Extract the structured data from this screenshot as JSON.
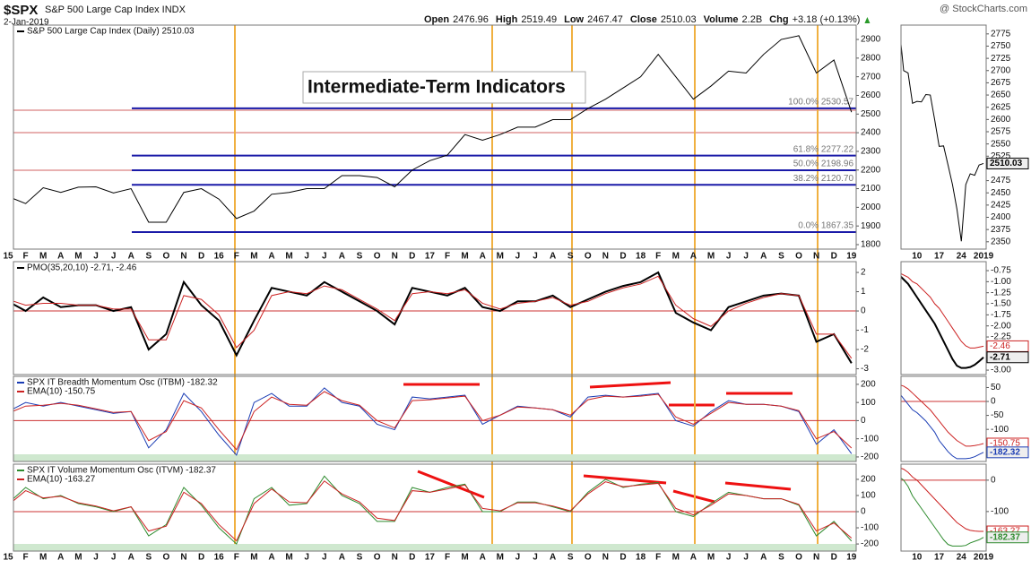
{
  "header": {
    "symbol": "$SPX",
    "name": "S&P 500 Large Cap Index INDX",
    "date": "2-Jan-2019",
    "source": "@ StockCharts.com",
    "quote": [
      {
        "label": "Open",
        "value": "2476.96"
      },
      {
        "label": "High",
        "value": "2519.49"
      },
      {
        "label": "Low",
        "value": "2467.47"
      },
      {
        "label": "Close",
        "value": "2510.03"
      },
      {
        "label": "Volume",
        "value": "2.2B"
      },
      {
        "label": "Chg",
        "value": "+3.18 (+0.13%)"
      }
    ]
  },
  "chart_data": [
    {
      "type": "line",
      "annotation": "Intermediate-Term Indicators",
      "categories": [
        "15",
        "F",
        "M",
        "A",
        "M",
        "J",
        "J",
        "A",
        "S",
        "O",
        "N",
        "D",
        "16",
        "F",
        "M",
        "A",
        "M",
        "J",
        "J",
        "A",
        "S",
        "O",
        "N",
        "D",
        "17",
        "F",
        "M",
        "A",
        "M",
        "J",
        "J",
        "A",
        "S",
        "O",
        "N",
        "D",
        "18",
        "F",
        "M",
        "A",
        "M",
        "J",
        "J",
        "A",
        "S",
        "O",
        "N",
        "D",
        "19"
      ],
      "series": [
        {
          "name": "S&P 500 Large Cap Index (Daily) 2510.03",
          "color": "#000000",
          "values": [
            2058,
            2020,
            2105,
            2080,
            2108,
            2110,
            2077,
            2100,
            1920,
            1920,
            2080,
            2100,
            2044,
            1940,
            1980,
            2070,
            2080,
            2100,
            2100,
            2170,
            2170,
            2160,
            2110,
            2200,
            2250,
            2280,
            2390,
            2360,
            2390,
            2430,
            2430,
            2470,
            2470,
            2530,
            2580,
            2640,
            2700,
            2820,
            2700,
            2580,
            2650,
            2730,
            2720,
            2820,
            2900,
            2920,
            2720,
            2790,
            2510.03
          ]
        }
      ],
      "fib_levels": [
        {
          "value": 2530.57,
          "label": "100.0% 2530.57"
        },
        {
          "value": 2277.22,
          "label": "61.8% 2277.22"
        },
        {
          "value": 2198.96,
          "label": "50.0% 2198.96"
        },
        {
          "value": 2120.7,
          "label": "38.2% 2120.70"
        },
        {
          "value": 1867.35,
          "label": "0.0% 1867.35"
        }
      ],
      "fib_color": "#1a1aa8",
      "ylim": [
        1776,
        2977
      ],
      "yticks": [
        1800,
        1900,
        2000,
        2100,
        2200,
        2300,
        2400,
        2500,
        2600,
        2700,
        2800,
        2900
      ]
    },
    {
      "type": "line",
      "last_tags": true,
      "categories": [
        null,
        null,
        null,
        null,
        "10",
        null,
        null,
        null,
        null,
        "17",
        null,
        null,
        null,
        null,
        "24",
        null,
        null,
        null,
        null,
        "2019"
      ],
      "series": [
        {
          "color": "#000000",
          "values": [
            2790,
            2700,
            2695,
            2633,
            2637,
            2636,
            2651,
            2650,
            2599,
            2545,
            2546,
            2507,
            2467,
            2417,
            2351,
            2467,
            2489,
            2486,
            2507,
            2510.03
          ]
        }
      ],
      "ylim": [
        2335,
        2793
      ],
      "yticks": [
        2350,
        2375,
        2400,
        2425,
        2450,
        2475,
        2525,
        2550,
        2575,
        2600,
        2625,
        2650,
        2675,
        2700,
        2725,
        2750,
        2775
      ]
    },
    {
      "type": "line",
      "title": "PMO(35,20,10) -2.71, -2.46",
      "zero_line": true,
      "series": [
        {
          "color": "#000000",
          "width": 2,
          "values": [
            0.5,
            0,
            0.7,
            0.2,
            0.3,
            0.3,
            0,
            0.2,
            -2.0,
            -1.2,
            1.5,
            0.3,
            -0.5,
            -2.3,
            -0.5,
            1.2,
            1.0,
            0.8,
            1.5,
            1.0,
            0.5,
            0,
            -0.7,
            1.2,
            1.0,
            0.8,
            1.2,
            0.2,
            0,
            0.5,
            0.5,
            0.8,
            0.2,
            0.6,
            1.0,
            1.3,
            1.5,
            2.0,
            -0.1,
            -0.6,
            -1.0,
            0.2,
            0.5,
            0.8,
            0.9,
            0.8,
            -1.6,
            -1.2,
            -2.71
          ]
        },
        {
          "color": "#cc2222",
          "width": 1,
          "values": [
            0.6,
            0.3,
            0.4,
            0.4,
            0.3,
            0.3,
            0.1,
            0.1,
            -1.5,
            -1.5,
            0.8,
            0.6,
            -0.2,
            -1.9,
            -1.0,
            0.8,
            1.0,
            0.9,
            1.3,
            1.1,
            0.6,
            0.1,
            -0.5,
            0.9,
            1.0,
            0.9,
            1.1,
            0.4,
            0.1,
            0.4,
            0.5,
            0.7,
            0.3,
            0.5,
            0.9,
            1.2,
            1.4,
            1.8,
            0.3,
            -0.4,
            -0.8,
            0.0,
            0.4,
            0.7,
            0.9,
            0.8,
            -1.2,
            -1.2,
            -2.46
          ]
        }
      ],
      "ylim": [
        -3.3,
        2.56
      ],
      "yticks": [
        -3,
        -2,
        -1,
        0,
        1,
        2
      ]
    },
    {
      "type": "line",
      "last_tags": true,
      "series": [
        {
          "color": "#000000",
          "width": 2,
          "values": [
            -0.85,
            -0.95,
            -1.05,
            -1.2,
            -1.35,
            -1.5,
            -1.65,
            -1.8,
            -1.95,
            -2.15,
            -2.35,
            -2.55,
            -2.75,
            -2.9,
            -2.95,
            -2.95,
            -2.93,
            -2.88,
            -2.8,
            -2.71
          ]
        },
        {
          "color": "#cc2222",
          "width": 1,
          "values": [
            -0.8,
            -0.85,
            -0.9,
            -1.0,
            -1.05,
            -1.15,
            -1.25,
            -1.35,
            -1.5,
            -1.6,
            -1.75,
            -1.9,
            -2.05,
            -2.2,
            -2.35,
            -2.45,
            -2.5,
            -2.5,
            -2.48,
            -2.46
          ]
        }
      ],
      "ylim": [
        -3.1,
        -0.547
      ],
      "yticks": [
        -0.75,
        {
          "value": -1,
          "label": "-1.00"
        },
        -1.25,
        {
          "value": -1.5,
          "label": "-1.50"
        },
        -1.75,
        {
          "value": -2,
          "label": "-2.00"
        },
        -2.25,
        {
          "value": -3,
          "label": "-3.00"
        }
      ]
    },
    {
      "type": "line",
      "zero_line": true,
      "band": true,
      "series": [
        {
          "name": "SPX IT Breadth Momentum Osc (ITBM) -182.32",
          "color": "#1a3cb4",
          "width": 1,
          "values": [
            50,
            100,
            80,
            100,
            80,
            60,
            40,
            50,
            -150,
            -50,
            150,
            50,
            -80,
            -190,
            100,
            150,
            80,
            80,
            180,
            100,
            80,
            -20,
            -50,
            130,
            120,
            130,
            140,
            -20,
            30,
            80,
            70,
            60,
            20,
            130,
            140,
            130,
            140,
            150,
            0,
            -30,
            50,
            110,
            90,
            90,
            80,
            50,
            -130,
            -50,
            -182.32
          ]
        },
        {
          "name": "EMA(10) -150.75",
          "color": "#cc2222",
          "width": 1,
          "values": [
            40,
            80,
            85,
            95,
            85,
            65,
            45,
            50,
            -110,
            -60,
            110,
            70,
            -50,
            -160,
            50,
            130,
            90,
            85,
            160,
            110,
            85,
            0,
            -40,
            110,
            115,
            125,
            135,
            0,
            30,
            75,
            70,
            60,
            30,
            115,
            135,
            130,
            135,
            145,
            20,
            -20,
            40,
            100,
            90,
            90,
            80,
            55,
            -100,
            -60,
            -150.75
          ]
        }
      ],
      "ylim": [
        -225,
        244
      ],
      "yticks": [
        -200,
        -100,
        0,
        100,
        200
      ]
    },
    {
      "type": "line",
      "last_tags": true,
      "zero_line": true,
      "series": [
        {
          "color": "#1a3cb4",
          "width": 1,
          "values": [
            30,
            10,
            -10,
            -30,
            -40,
            -55,
            -70,
            -90,
            -110,
            -140,
            -160,
            -180,
            -195,
            -205,
            -205,
            -205,
            -203,
            -198,
            -190,
            -182.32
          ]
        },
        {
          "color": "#cc2222",
          "width": 1,
          "values": [
            60,
            55,
            45,
            30,
            15,
            0,
            -15,
            -30,
            -50,
            -70,
            -90,
            -110,
            -125,
            -140,
            -150,
            -160,
            -160,
            -158,
            -155,
            -150.75
          ]
        }
      ],
      "ylim": [
        -215,
        90
      ],
      "yticks": [
        50,
        0,
        -50,
        -100
      ]
    },
    {
      "type": "line",
      "zero_line": true,
      "band": true,
      "categories": [
        "15",
        "F",
        "M",
        "A",
        "M",
        "J",
        "J",
        "A",
        "S",
        "O",
        "N",
        "D",
        "16",
        "F",
        "M",
        "A",
        "M",
        "J",
        "J",
        "A",
        "S",
        "O",
        "N",
        "D",
        "17",
        "F",
        "M",
        "A",
        "M",
        "J",
        "J",
        "A",
        "S",
        "O",
        "N",
        "D",
        "18",
        "F",
        "M",
        "A",
        "M",
        "J",
        "J",
        "A",
        "S",
        "O",
        "N",
        "D",
        "19"
      ],
      "series": [
        {
          "name": "SPX IT Volume Momentum Osc (ITVM) -182.37",
          "color": "#2e8b2e",
          "width": 1,
          "values": [
            50,
            150,
            80,
            100,
            50,
            30,
            0,
            30,
            -150,
            -80,
            150,
            40,
            -100,
            -200,
            80,
            150,
            40,
            50,
            220,
            100,
            50,
            -60,
            -60,
            150,
            120,
            150,
            170,
            0,
            0,
            60,
            60,
            30,
            0,
            120,
            200,
            150,
            170,
            180,
            0,
            -30,
            50,
            120,
            100,
            80,
            80,
            40,
            -150,
            -60,
            -182.37
          ]
        },
        {
          "name": "EMA(10) -163.27",
          "color": "#cc2222",
          "width": 1,
          "values": [
            40,
            130,
            85,
            95,
            55,
            35,
            5,
            30,
            -120,
            -90,
            120,
            50,
            -80,
            -180,
            50,
            140,
            60,
            55,
            190,
            110,
            60,
            -40,
            -55,
            130,
            120,
            140,
            165,
            20,
            5,
            55,
            55,
            35,
            5,
            110,
            185,
            155,
            165,
            175,
            20,
            -20,
            40,
            110,
            100,
            80,
            80,
            45,
            -120,
            -70,
            -163.27
          ]
        }
      ],
      "ylim": [
        -244,
        294
      ],
      "yticks": [
        -200,
        -100,
        0,
        100,
        200
      ]
    },
    {
      "type": "line",
      "last_tags": true,
      "zero_line": true,
      "categories": [
        null,
        null,
        null,
        null,
        "10",
        null,
        null,
        null,
        null,
        "17",
        null,
        null,
        null,
        null,
        "24",
        null,
        null,
        null,
        null,
        "2019"
      ],
      "series": [
        {
          "color": "#2e8b2e",
          "width": 1,
          "values": [
            10,
            0,
            -20,
            -50,
            -70,
            -90,
            -110,
            -130,
            -150,
            -170,
            -190,
            -205,
            -210,
            -210,
            -210,
            -208,
            -200,
            -195,
            -190,
            -182.37
          ]
        },
        {
          "color": "#cc2222",
          "width": 1,
          "values": [
            40,
            35,
            25,
            10,
            0,
            -15,
            -30,
            -45,
            -60,
            -75,
            -90,
            -105,
            -120,
            -135,
            -145,
            -155,
            -160,
            -162,
            -163,
            -163.27
          ]
        }
      ],
      "ylim": [
        -226,
        51
      ],
      "yticks": [
        0,
        -100
      ]
    }
  ]
}
